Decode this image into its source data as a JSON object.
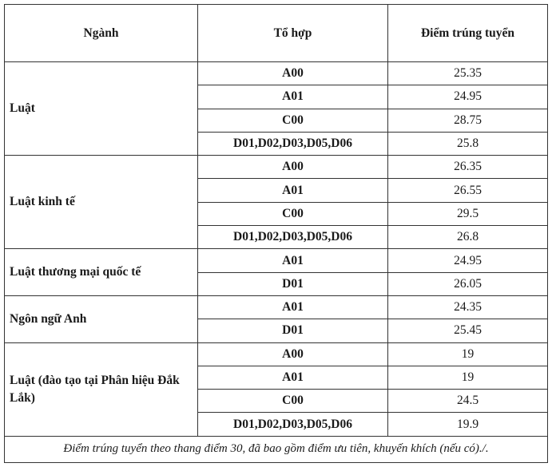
{
  "table": {
    "headers": [
      "Ngành",
      "Tổ hợp",
      "Điểm trúng tuyển"
    ],
    "groups": [
      {
        "major": "Luật",
        "rows": [
          {
            "combo": "A00",
            "score": "25.35"
          },
          {
            "combo": "A01",
            "score": "24.95"
          },
          {
            "combo": "C00",
            "score": "28.75"
          },
          {
            "combo": "D01,D02,D03,D05,D06",
            "score": "25.8"
          }
        ]
      },
      {
        "major": "Luật kinh tế",
        "rows": [
          {
            "combo": "A00",
            "score": "26.35"
          },
          {
            "combo": "A01",
            "score": "26.55"
          },
          {
            "combo": "C00",
            "score": "29.5"
          },
          {
            "combo": "D01,D02,D03,D05,D06",
            "score": "26.8"
          }
        ]
      },
      {
        "major": "Luật thương mại quốc tế",
        "rows": [
          {
            "combo": "A01",
            "score": "24.95"
          },
          {
            "combo": "D01",
            "score": "26.05"
          }
        ]
      },
      {
        "major": "Ngôn ngữ Anh",
        "rows": [
          {
            "combo": "A01",
            "score": "24.35"
          },
          {
            "combo": "D01",
            "score": "25.45"
          }
        ]
      },
      {
        "major": "Luật (đào tạo tại Phân hiệu Đắk Lắk)",
        "rows": [
          {
            "combo": "A00",
            "score": "19"
          },
          {
            "combo": "A01",
            "score": "19"
          },
          {
            "combo": "C00",
            "score": "24.5"
          },
          {
            "combo": "D01,D02,D03,D05,D06",
            "score": "19.9"
          }
        ]
      }
    ],
    "note": "Điểm trúng tuyển theo thang điểm 30, đã bao gồm điểm ưu tiên, khuyến khích (nếu có)./."
  }
}
